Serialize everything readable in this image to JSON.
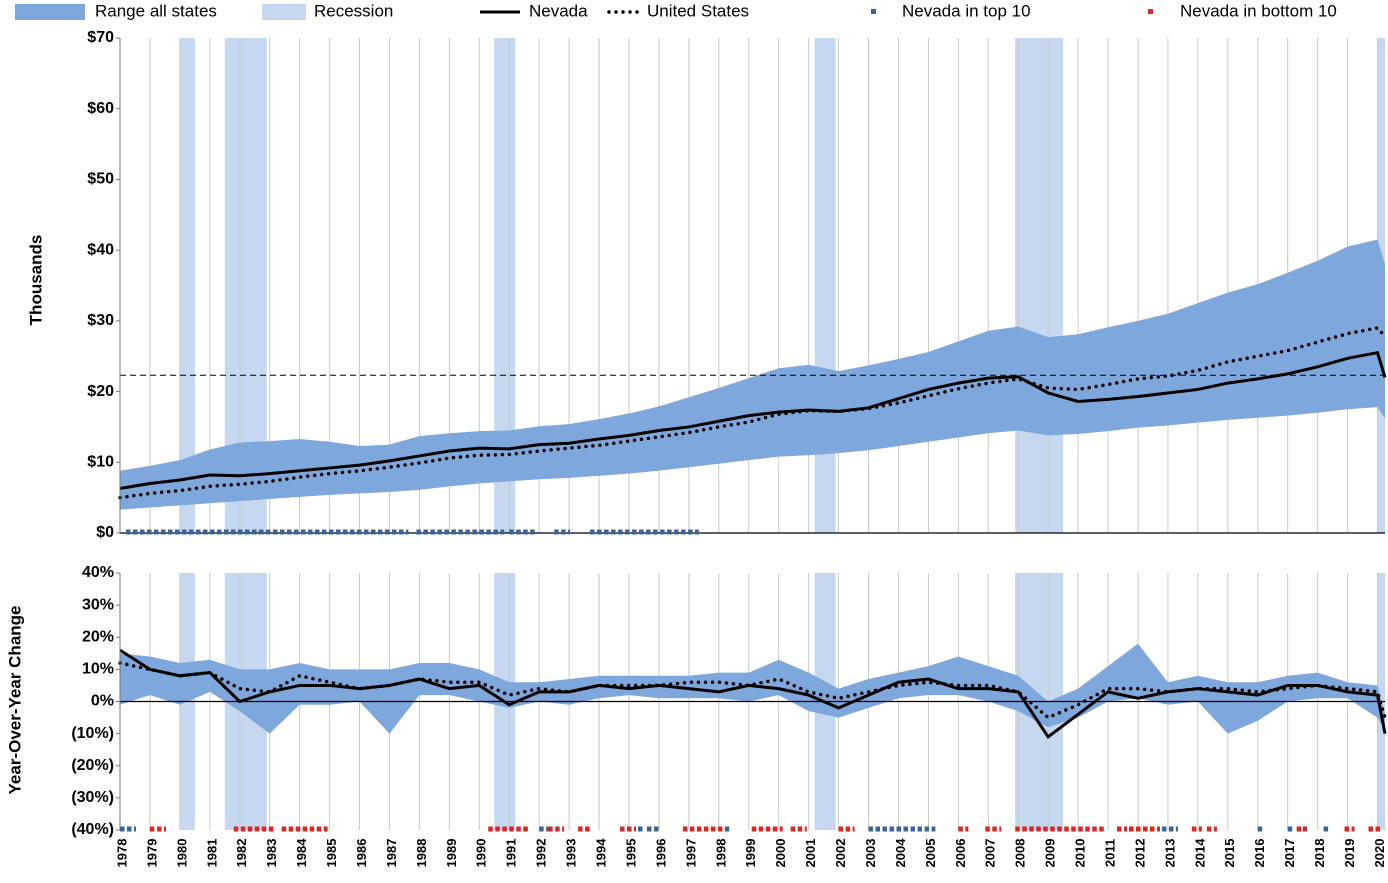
{
  "chart_data": [
    {
      "type": "band-line",
      "y_label": "Thousands",
      "x": [
        1978,
        1979,
        1980,
        1981,
        1982,
        1983,
        1984,
        1985,
        1986,
        1987,
        1988,
        1989,
        1990,
        1991,
        1992,
        1993,
        1994,
        1995,
        1996,
        1997,
        1998,
        1999,
        2000,
        2001,
        2002,
        2003,
        2004,
        2005,
        2006,
        2007,
        2008,
        2009,
        2010,
        2011,
        2012,
        2013,
        2014,
        2015,
        2016,
        2017,
        2018,
        2019,
        2020,
        2020.25
      ],
      "xlim": [
        1978,
        2020.25
      ],
      "ylim": [
        0,
        70
      ],
      "yticks": [
        {
          "value": 0,
          "label": "$0"
        },
        {
          "value": 10,
          "label": "$10"
        },
        {
          "value": 20,
          "label": "$20"
        },
        {
          "value": 30,
          "label": "$30"
        },
        {
          "value": 40,
          "label": "$40"
        },
        {
          "value": 50,
          "label": "$50"
        },
        {
          "value": 60,
          "label": "$60"
        },
        {
          "value": 70,
          "label": "$70"
        }
      ],
      "grid": true,
      "ref_line": 22.3,
      "recession": {
        "name": "Recession",
        "color": "#c5d8ef",
        "spans": [
          [
            1980.0,
            1980.5
          ],
          [
            1981.5,
            1982.9
          ],
          [
            1990.5,
            1991.2
          ],
          [
            2001.2,
            2001.9
          ],
          [
            2007.9,
            2009.5
          ],
          [
            2020.0,
            2020.25
          ]
        ]
      },
      "series": [
        {
          "name": "Range all states",
          "color": "#7ea7dc",
          "low": [
            3.3,
            3.6,
            3.9,
            4.2,
            4.5,
            4.8,
            5.1,
            5.4,
            5.6,
            5.8,
            6.1,
            6.6,
            7.0,
            7.3,
            7.6,
            7.8,
            8.1,
            8.4,
            8.8,
            9.3,
            9.8,
            10.3,
            10.8,
            11.0,
            11.3,
            11.7,
            12.3,
            12.9,
            13.5,
            14.1,
            14.5,
            13.8,
            14.0,
            14.4,
            14.9,
            15.2,
            15.6,
            16.0,
            16.3,
            16.6,
            17.0,
            17.5,
            17.8,
            16.2
          ],
          "high": [
            8.8,
            9.5,
            10.3,
            11.8,
            12.8,
            13.0,
            13.3,
            12.9,
            12.3,
            12.5,
            13.7,
            14.1,
            14.4,
            14.5,
            15.1,
            15.4,
            16.1,
            16.9,
            17.9,
            19.2,
            20.5,
            21.9,
            23.3,
            23.8,
            22.9,
            23.7,
            24.6,
            25.6,
            27.1,
            28.6,
            29.2,
            27.7,
            28.1,
            29.1,
            30.0,
            31.0,
            32.5,
            34.0,
            35.2,
            36.8,
            38.5,
            40.5,
            41.5,
            38.0
          ]
        },
        {
          "name": "Nevada",
          "color": "#000000",
          "values": [
            6.3,
            7.0,
            7.5,
            8.2,
            8.1,
            8.4,
            8.8,
            9.2,
            9.6,
            10.2,
            10.9,
            11.6,
            12.0,
            11.9,
            12.5,
            12.7,
            13.3,
            13.8,
            14.5,
            15.0,
            15.8,
            16.6,
            17.1,
            17.4,
            17.2,
            17.7,
            19.0,
            20.3,
            21.2,
            21.9,
            22.1,
            19.8,
            18.6,
            18.9,
            19.3,
            19.8,
            20.3,
            21.2,
            21.8,
            22.5,
            23.5,
            24.7,
            25.5,
            22.0
          ]
        },
        {
          "name": "United States",
          "color": "#000000",
          "dotted": true,
          "values": [
            5.0,
            5.6,
            6.0,
            6.6,
            6.9,
            7.3,
            7.9,
            8.4,
            8.8,
            9.3,
            9.9,
            10.6,
            11.0,
            11.1,
            11.6,
            12.0,
            12.4,
            13.0,
            13.6,
            14.2,
            15.0,
            15.7,
            16.8,
            17.3,
            17.2,
            17.6,
            18.4,
            19.4,
            20.4,
            21.2,
            21.8,
            20.5,
            20.3,
            21.0,
            21.8,
            22.2,
            23.0,
            24.2,
            25.0,
            25.8,
            27.0,
            28.2,
            29.0,
            27.8
          ]
        }
      ],
      "top10": {
        "name": "Nevada in top 10",
        "color": "#3b6496",
        "spans": [
          [
            1978.2,
            1987.5
          ],
          [
            1987.9,
            1990.7
          ],
          [
            1991.0,
            1991.8
          ],
          [
            1992.5,
            1992.9
          ],
          [
            1993.7,
            1997.2
          ]
        ]
      },
      "bottom10": {
        "name": "Nevada in bottom 10",
        "color": "#e02424"
      }
    },
    {
      "type": "band-line",
      "y_label": "Year-Over-Year Change",
      "x": [
        1978,
        1979,
        1980,
        1981,
        1982,
        1983,
        1984,
        1985,
        1986,
        1987,
        1988,
        1989,
        1990,
        1991,
        1992,
        1993,
        1994,
        1995,
        1996,
        1997,
        1998,
        1999,
        2000,
        2001,
        2002,
        2003,
        2004,
        2005,
        2006,
        2007,
        2008,
        2009,
        2010,
        2011,
        2012,
        2013,
        2014,
        2015,
        2016,
        2017,
        2018,
        2019,
        2020,
        2020.25
      ],
      "xlim": [
        1978,
        2020.25
      ],
      "xticks": [
        1978,
        1979,
        1980,
        1981,
        1982,
        1983,
        1984,
        1985,
        1986,
        1987,
        1988,
        1989,
        1990,
        1991,
        1992,
        1993,
        1994,
        1995,
        1996,
        1997,
        1998,
        1999,
        2000,
        2001,
        2002,
        2003,
        2004,
        2005,
        2006,
        2007,
        2008,
        2009,
        2010,
        2011,
        2012,
        2013,
        2014,
        2015,
        2016,
        2017,
        2018,
        2019,
        2020
      ],
      "ylim": [
        -40,
        40
      ],
      "yticks": [
        {
          "value": -40,
          "label": "(40%)"
        },
        {
          "value": -30,
          "label": "(30%)"
        },
        {
          "value": -20,
          "label": "(20%)"
        },
        {
          "value": -10,
          "label": "(10%)"
        },
        {
          "value": 0,
          "label": "0%"
        },
        {
          "value": 10,
          "label": "10%"
        },
        {
          "value": 20,
          "label": "20%"
        },
        {
          "value": 30,
          "label": "30%"
        },
        {
          "value": 40,
          "label": "40%"
        }
      ],
      "negative_tick_color": "#e02424",
      "grid": true,
      "recession": {
        "color": "#c5d8ef",
        "spans": [
          [
            1980.0,
            1980.5
          ],
          [
            1981.5,
            1982.9
          ],
          [
            1990.5,
            1991.2
          ],
          [
            2001.2,
            2001.9
          ],
          [
            2007.9,
            2009.5
          ],
          [
            2020.0,
            2020.25
          ]
        ]
      },
      "series": [
        {
          "color": "#7ea7dc",
          "low": [
            -1,
            2,
            -1,
            3,
            -3,
            -10,
            -1,
            -1,
            0,
            -10,
            2,
            2,
            0,
            -2,
            0,
            -1,
            1,
            2,
            1,
            1,
            1,
            0,
            2,
            -3,
            -5,
            -2,
            1,
            2,
            2,
            0,
            -3,
            -8,
            -5,
            0,
            1,
            -1,
            0,
            -10,
            -6,
            0,
            1,
            1,
            -5,
            -9
          ],
          "high": [
            15,
            14,
            12,
            13,
            10,
            10,
            12,
            10,
            10,
            10,
            12,
            12,
            10,
            6,
            6,
            7,
            8,
            8,
            8,
            8,
            9,
            9,
            13,
            9,
            4,
            7,
            9,
            11,
            14,
            11,
            8,
            0,
            4,
            11,
            18,
            6,
            8,
            6,
            6,
            8,
            9,
            6,
            5,
            -4
          ]
        },
        {
          "color": "#000000",
          "values": [
            16,
            10,
            8,
            9,
            0,
            3,
            5,
            5,
            4,
            5,
            7,
            4,
            5,
            -1,
            3,
            3,
            5,
            4,
            5,
            4,
            3,
            5,
            4,
            2,
            -2,
            2,
            6,
            7,
            4,
            4,
            3,
            -11,
            -4,
            3,
            1,
            3,
            4,
            3,
            2,
            5,
            5,
            3,
            2,
            -10
          ]
        },
        {
          "color": "#000000",
          "dotted": true,
          "values": [
            12,
            10,
            8,
            9,
            4,
            3,
            8,
            6,
            4,
            5,
            7,
            6,
            6,
            2,
            4,
            3,
            5,
            5,
            5,
            6,
            6,
            5,
            7,
            3,
            1,
            3,
            5,
            6,
            5,
            5,
            3,
            -5,
            -1,
            4,
            4,
            3,
            4,
            4,
            3,
            4,
            5,
            4,
            3,
            -5
          ]
        }
      ],
      "top10": {
        "color": "#3b6496",
        "spans": [
          [
            1978.0,
            1978.4
          ],
          [
            1992.0,
            1992.2
          ],
          [
            1995.3,
            1995.4
          ],
          [
            1995.6,
            1995.9
          ],
          [
            1998.2,
            1998.3
          ],
          [
            2003.0,
            2005.1
          ],
          [
            2012.8,
            2013.2
          ],
          [
            2016.0,
            2016.1
          ],
          [
            2017.0,
            2017.1
          ],
          [
            2017.5,
            2017.6
          ],
          [
            2018.2,
            2018.3
          ]
        ]
      },
      "bottom10": {
        "color": "#e02424",
        "spans": [
          [
            1979.0,
            1979.4
          ],
          [
            1981.8,
            1983.0
          ],
          [
            1983.4,
            1984.8
          ],
          [
            1990.3,
            1991.5
          ],
          [
            1992.3,
            1992.7
          ],
          [
            1993.3,
            1993.6
          ],
          [
            1994.7,
            1995.1
          ],
          [
            1996.8,
            1998.0
          ],
          [
            1999.1,
            2000.0
          ],
          [
            2000.4,
            2000.8
          ],
          [
            2002.0,
            2002.4
          ],
          [
            2006.0,
            2006.2
          ],
          [
            2006.9,
            2007.3
          ],
          [
            2007.9,
            2010.8
          ],
          [
            2011.3,
            2011.5
          ],
          [
            2011.7,
            2012.2
          ],
          [
            2012.4,
            2012.6
          ],
          [
            2013.8,
            2014.0
          ],
          [
            2014.3,
            2014.5
          ],
          [
            2017.3,
            2017.5
          ],
          [
            2018.9,
            2019.1
          ],
          [
            2019.7,
            2020.0
          ]
        ]
      }
    }
  ]
}
